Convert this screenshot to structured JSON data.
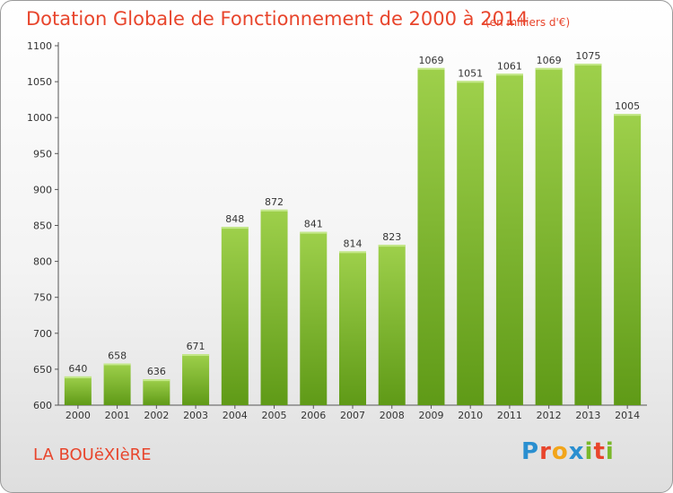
{
  "chart_data": {
    "type": "bar",
    "title": "Dotation Globale de Fonctionnement de 2000 à 2014",
    "subtitle": "(en milliers d'€)",
    "categories": [
      "2000",
      "2001",
      "2002",
      "2003",
      "2004",
      "2005",
      "2006",
      "2007",
      "2008",
      "2009",
      "2010",
      "2011",
      "2012",
      "2013",
      "2014"
    ],
    "values": [
      640,
      658,
      636,
      671,
      848,
      872,
      841,
      814,
      823,
      1069,
      1051,
      1061,
      1069,
      1075,
      1005
    ],
    "data_labels": [
      "640",
      "658",
      "636",
      "671",
      "848",
      "872",
      "841",
      "814",
      "823",
      "1069",
      "1051",
      "1061",
      "1069",
      "1075",
      "1005"
    ],
    "xlabel": "",
    "ylabel": "",
    "ylim": [
      600,
      1100
    ],
    "yticks": [
      600,
      650,
      700,
      750,
      800,
      850,
      900,
      950,
      1000,
      1050,
      1100
    ],
    "grid": false,
    "legend": "none",
    "bar_color_top": "#9ed04b",
    "bar_color_bottom": "#5f9a17",
    "title_color": "#e8452c"
  },
  "footer": {
    "commune": "LA BOUëXIèRE",
    "logo_text": "Proxiti",
    "logo_letters": [
      "P",
      "r",
      "o",
      "x",
      "i",
      "t",
      "i"
    ],
    "logo_colors": [
      "#2a8fd0",
      "#e8452c",
      "#f2a51a",
      "#2a8fd0",
      "#7ab82a",
      "#e8452c",
      "#7ab82a"
    ]
  }
}
